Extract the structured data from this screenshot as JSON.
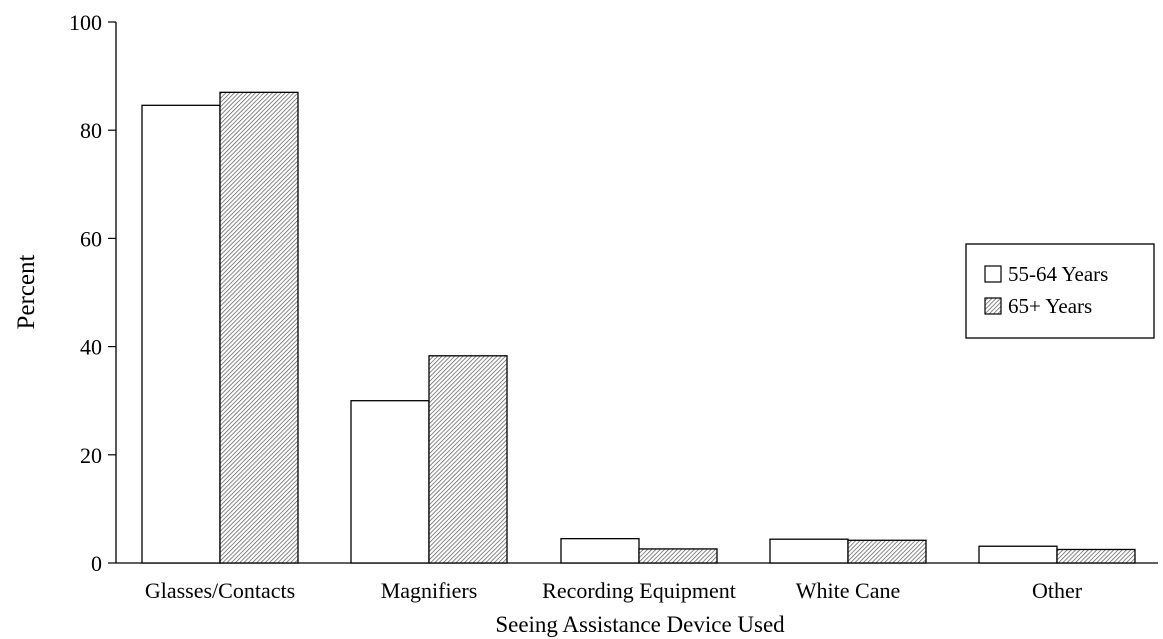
{
  "chart_data": {
    "type": "bar",
    "title": "",
    "xlabel": "Seeing Assistance Device Used",
    "ylabel": "Percent",
    "ylim": [
      0,
      100
    ],
    "yticks": [
      0,
      20,
      40,
      60,
      80,
      100
    ],
    "categories": [
      "Glasses/Contacts",
      "Magnifiers",
      "Recording Equipment",
      "White Cane",
      "Other"
    ],
    "series": [
      {
        "name": "55-64 Years",
        "fill": "white",
        "values": [
          84.6,
          30.0,
          4.5,
          4.4,
          3.1
        ]
      },
      {
        "name": "65+ Years",
        "fill": "hatched",
        "values": [
          87.0,
          38.3,
          2.6,
          4.2,
          2.5
        ]
      }
    ],
    "legend": {
      "position": "right",
      "entries": [
        "55-64 Years",
        "65+ Years"
      ]
    },
    "grid": false,
    "colors": {
      "axis": "#000000",
      "bar_outline": "#000000",
      "background": "#ffffff"
    }
  }
}
